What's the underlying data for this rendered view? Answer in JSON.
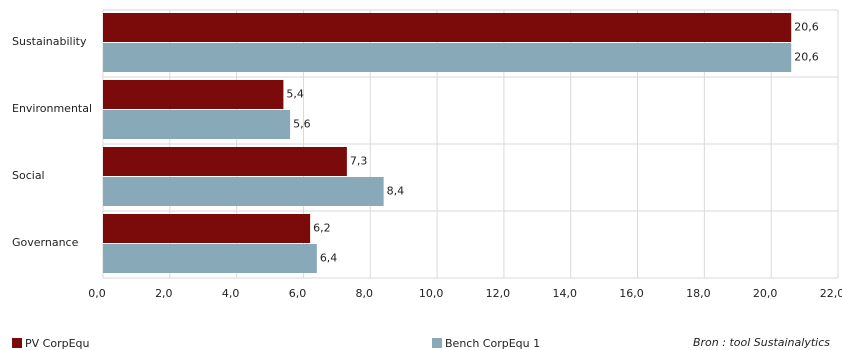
{
  "chart_data": {
    "type": "hbar",
    "categories": [
      "Sustainability",
      "Environmental",
      "Social",
      "Governance"
    ],
    "series": [
      {
        "name": "PV CorpEqu",
        "color": "#7b0a0a",
        "values": [
          20.6,
          5.4,
          7.3,
          6.2
        ],
        "value_labels": [
          "20,6",
          "5,4",
          "7,3",
          "6,2"
        ]
      },
      {
        "name": "Bench CorpEqu 1",
        "color": "#87a9b8",
        "values": [
          20.6,
          5.6,
          8.4,
          6.4
        ],
        "value_labels": [
          "20,6",
          "5,6",
          "8,4",
          "6,4"
        ]
      }
    ],
    "xlim": [
      0,
      22
    ],
    "xticks": [
      {
        "value": 0,
        "label": "0,0"
      },
      {
        "value": 2,
        "label": "2,0"
      },
      {
        "value": 4,
        "label": "4,0"
      },
      {
        "value": 6,
        "label": "6,0"
      },
      {
        "value": 8,
        "label": "8,0"
      },
      {
        "value": 10,
        "label": "10,0"
      },
      {
        "value": 12,
        "label": "12,0"
      },
      {
        "value": 14,
        "label": "14,0"
      },
      {
        "value": 16,
        "label": "16,0"
      },
      {
        "value": 18,
        "label": "18,0"
      },
      {
        "value": 20,
        "label": "20,0"
      },
      {
        "value": 22,
        "label": "22,0"
      }
    ],
    "grid": true,
    "legend": "bottom",
    "source": "Bron : tool Sustainalytics"
  }
}
